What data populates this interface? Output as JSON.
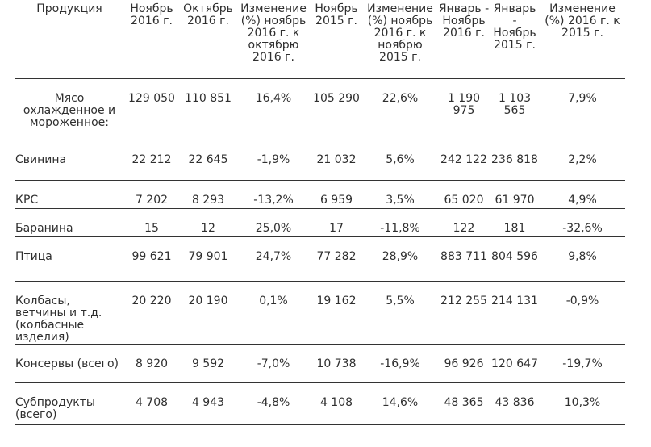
{
  "headers": [
    "Продукция",
    "Ноябрь 2016 г.",
    "Октябрь 2016 г.",
    "Изменение (%) ноябрь 2016 г. к октябрю 2016 г.",
    "Ноябрь 2015 г.",
    "Изменение (%) ноябрь 2016 г. к ноябрю 2015 г.",
    "Январь - Ноябрь 2016 г.",
    "Январь - Ноябрь 2015 г.",
    "Изменение (%) 2016 г. к 2015 г."
  ],
  "rows": [
    [
      "Мясо охлажденное и мороженное:",
      "129 050",
      "110 851",
      "16,4%",
      "105 290",
      "22,6%",
      "1 190 975",
      "1 103 565",
      "7,9%"
    ],
    [
      "Свинина",
      "22 212",
      "22 645",
      "-1,9%",
      "21 032",
      "5,6%",
      "242 122",
      "236 818",
      "2,2%"
    ],
    [
      "КРС",
      "7 202",
      "8 293",
      "-13,2%",
      "6 959",
      "3,5%",
      "65 020",
      "61 970",
      "4,9%"
    ],
    [
      "Баранина",
      "15",
      "12",
      "25,0%",
      "17",
      "-11,8%",
      "122",
      "181",
      "-32,6%"
    ],
    [
      "Птица",
      "99 621",
      "79 901",
      "24,7%",
      "77 282",
      "28,9%",
      "883 711",
      "804 596",
      "9,8%"
    ],
    [
      "Колбасы, ветчины и т.д. (колбасные изделия)",
      "20 220",
      "20 190",
      "0,1%",
      "19 162",
      "5,5%",
      "212 255",
      "214 131",
      "-0,9%"
    ],
    [
      "Консервы (всего)",
      "8 920",
      "9 592",
      "-7,0%",
      "10 738",
      "-16,9%",
      "96 926",
      "120 647",
      "-19,7%"
    ],
    [
      "Субпродукты (всего)",
      "4 708",
      "4 943",
      "-4,8%",
      "4 108",
      "14,6%",
      "48 365",
      "43 836",
      "10,3%"
    ]
  ]
}
